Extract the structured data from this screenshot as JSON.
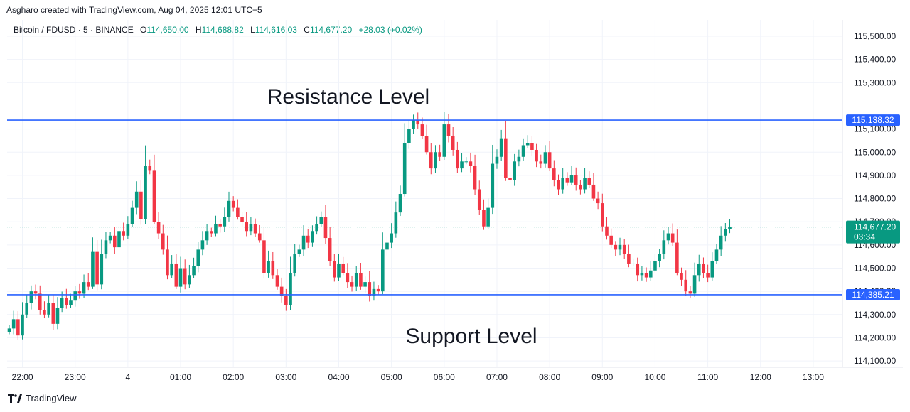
{
  "credit": "Asgharo created with TradingView.com, Aug 04, 2025 12:01 UTC+5",
  "legend": {
    "symbol": "Bitcoin / FDUSD · 5 · BINANCE",
    "open_label": "O",
    "open": "114,650.00",
    "high_label": "H",
    "high": "114,688.82",
    "low_label": "L",
    "low": "114,616.03",
    "close_label": "C",
    "close": "114,677.20",
    "change": "+28.03 (+0.02%)"
  },
  "footer": {
    "brand": "TradingView",
    "logo_icon": "tradingview-logo-icon"
  },
  "colors": {
    "up": "#089981",
    "down": "#f23645",
    "level_line": "#2962ff",
    "grid": "#f0f3fa",
    "axis_text": "#131722"
  },
  "chart_data": {
    "type": "candlestick",
    "title": "",
    "ylim": [
      114050,
      115600
    ],
    "y_ticks": [
      {
        "value": 115500,
        "label": "115,500.00"
      },
      {
        "value": 115400,
        "label": "115,400.00"
      },
      {
        "value": 115300,
        "label": "115,300.00"
      },
      {
        "value": 115100,
        "label": "115,100.00"
      },
      {
        "value": 115000,
        "label": "115,000.00"
      },
      {
        "value": 114900,
        "label": "114,900.00"
      },
      {
        "value": 114800,
        "label": "114,800.00"
      },
      {
        "value": 114700,
        "label": "114,700.00"
      },
      {
        "value": 114600,
        "label": "114,600.00"
      },
      {
        "value": 114500,
        "label": "114,500.00"
      },
      {
        "value": 114400,
        "label": "114,400.00"
      },
      {
        "value": 114300,
        "label": "114,300.00"
      },
      {
        "value": 114200,
        "label": "114,200.00"
      },
      {
        "value": 114100,
        "label": "114,100.00"
      }
    ],
    "x_ticks": [
      {
        "bar": 3,
        "label": "22:00"
      },
      {
        "bar": 15,
        "label": "23:00"
      },
      {
        "bar": 27,
        "label": "4"
      },
      {
        "bar": 39,
        "label": "01:00"
      },
      {
        "bar": 51,
        "label": "02:00"
      },
      {
        "bar": 63,
        "label": "03:00"
      },
      {
        "bar": 75,
        "label": "04:00"
      },
      {
        "bar": 87,
        "label": "05:00"
      },
      {
        "bar": 99,
        "label": "06:00"
      },
      {
        "bar": 111,
        "label": "07:00"
      },
      {
        "bar": 123,
        "label": "08:00"
      },
      {
        "bar": 135,
        "label": "09:00"
      },
      {
        "bar": 147,
        "label": "10:00"
      },
      {
        "bar": 159,
        "label": "11:00"
      },
      {
        "bar": 171,
        "label": "12:00"
      },
      {
        "bar": 183,
        "label": "13:00"
      }
    ],
    "levels": [
      {
        "value": 115138.32,
        "label": "115,138.32",
        "annotation": "Resistance Level"
      },
      {
        "value": 114385.21,
        "label": "114,385.21",
        "annotation": "Support Level"
      }
    ],
    "last_price": {
      "value": 114677.2,
      "label": "114,677.20",
      "countdown": "03:34"
    },
    "closes": [
      114240,
      114280,
      114210,
      114300,
      114350,
      114400,
      114390,
      114320,
      114300,
      114350,
      114260,
      114330,
      114370,
      114340,
      114360,
      114400,
      114390,
      114440,
      114420,
      114570,
      114430,
      114560,
      114620,
      114640,
      114590,
      114660,
      114640,
      114690,
      114760,
      114830,
      114710,
      114940,
      114920,
      114700,
      114650,
      114580,
      114470,
      114520,
      114420,
      114500,
      114430,
      114470,
      114510,
      114580,
      114620,
      114660,
      114650,
      114690,
      114680,
      114720,
      114790,
      114760,
      114720,
      114700,
      114660,
      114690,
      114650,
      114620,
      114480,
      114530,
      114470,
      114420,
      114380,
      114340,
      114480,
      114560,
      114580,
      114640,
      114610,
      114660,
      114690,
      114720,
      114630,
      114530,
      114460,
      114520,
      114480,
      114440,
      114420,
      114480,
      114420,
      114440,
      114380,
      114410,
      114400,
      114580,
      114610,
      114650,
      114740,
      114820,
      115040,
      115100,
      115140,
      115120,
      115070,
      115000,
      114930,
      115000,
      114980,
      115120,
      115070,
      115010,
      114930,
      114960,
      114960,
      114940,
      114840,
      114750,
      114680,
      114760,
      114950,
      114980,
      115060,
      114890,
      114880,
      114960,
      114980,
      115030,
      115040,
      115010,
      114960,
      114950,
      115000,
      114930,
      114880,
      114840,
      114890,
      114870,
      114900,
      114860,
      114840,
      114890,
      114860,
      114800,
      114780,
      114680,
      114640,
      114600,
      114580,
      114600,
      114560,
      114520,
      114520,
      114470,
      114480,
      114460,
      114490,
      114530,
      114560,
      114620,
      114650,
      114610,
      114480,
      114450,
      114400,
      114390,
      114470,
      114520,
      114480,
      114460,
      114530,
      114580,
      114640,
      114670,
      114677
    ]
  }
}
